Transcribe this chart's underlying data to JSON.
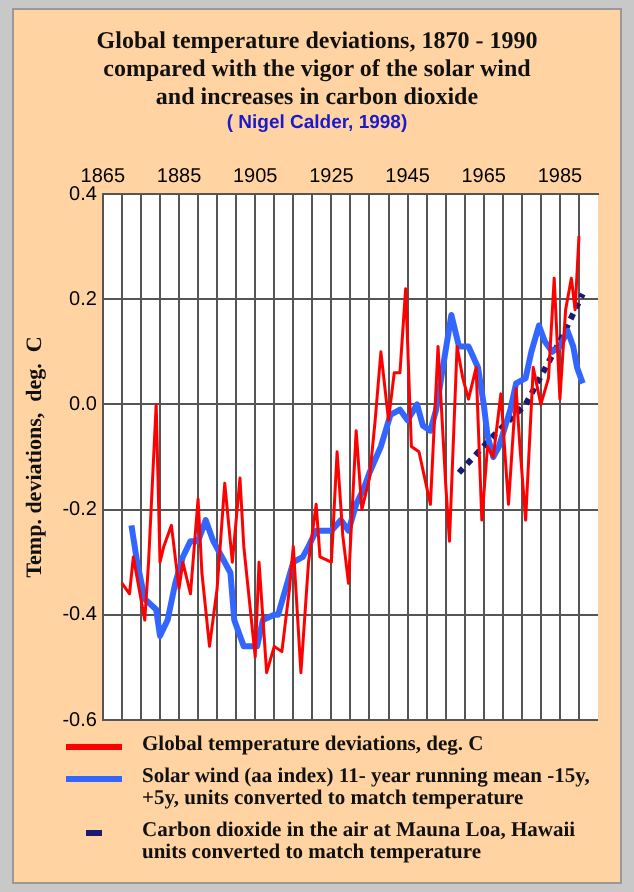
{
  "chart_data": {
    "type": "line",
    "title": "Global  temperature  deviations,  1870 - 1990\ncompared with the vigor of the solar wind\nand increases in carbon dioxide",
    "subtitle": "( Nigel Calder, 1998)",
    "ylabel": "Temp. deviations,  deg.  C",
    "xlim": [
      1865,
      1995
    ],
    "xticks": [
      1865,
      {
        "value": 1870,
        "label": null
      },
      {
        "value": 1875,
        "label": null
      },
      {
        "value": 1880,
        "label": null
      },
      1885,
      {
        "value": 1890,
        "label": null
      },
      {
        "value": 1895,
        "label": null
      },
      {
        "value": 1900,
        "label": null
      },
      1905,
      {
        "value": 1910,
        "label": null
      },
      {
        "value": 1915,
        "label": null
      },
      {
        "value": 1920,
        "label": null
      },
      1925,
      {
        "value": 1930,
        "label": null
      },
      {
        "value": 1935,
        "label": null
      },
      {
        "value": 1940,
        "label": null
      },
      1945,
      {
        "value": 1950,
        "label": null
      },
      {
        "value": 1955,
        "label": null
      },
      {
        "value": 1960,
        "label": null
      },
      1965,
      {
        "value": 1970,
        "label": null
      },
      {
        "value": 1975,
        "label": null
      },
      {
        "value": 1980,
        "label": null
      },
      1985,
      {
        "value": 1990,
        "label": null
      }
    ],
    "ylim": [
      -0.6,
      0.4
    ],
    "yticks": [
      {
        "value": -0.6,
        "label": "-0.6"
      },
      {
        "value": -0.4,
        "label": "-0.4"
      },
      {
        "value": -0.2,
        "label": "-0.2"
      },
      {
        "value": 0,
        "label": "0.0"
      },
      {
        "value": 0.2,
        "label": "0.2"
      },
      {
        "value": 0.4,
        "label": "0.4"
      }
    ],
    "grid": true,
    "legend": "bottom",
    "marker": "none",
    "series": [
      {
        "name": "Global temperature deviations, deg. C",
        "color": "#ff0000",
        "x": [
          1870,
          1872,
          1873,
          1874,
          1876,
          1877,
          1879,
          1880,
          1881,
          1883,
          1885,
          1886,
          1888,
          1890,
          1891,
          1893,
          1895,
          1897,
          1899,
          1901,
          1902,
          1905,
          1906,
          1908,
          1910,
          1912,
          1914,
          1915,
          1917,
          1919,
          1921,
          1922,
          1925,
          1926.5,
          1928,
          1929.5,
          1931.5,
          1933,
          1935,
          1936.5,
          1938,
          1940,
          1941.5,
          1943,
          1944.5,
          1946,
          1948,
          1951,
          1953,
          1955,
          1956,
          1958,
          1959.5,
          1961,
          1963,
          1964.5,
          1966,
          1967.5,
          1969.5,
          1971.5,
          1973.5,
          1974.5,
          1976,
          1978,
          1980,
          1982,
          1983.5,
          1985,
          1986.5,
          1988,
          1989,
          1990
        ],
        "values": [
          -0.34,
          -0.36,
          -0.29,
          -0.33,
          -0.41,
          -0.3,
          0.0,
          -0.3,
          -0.27,
          -0.23,
          -0.35,
          -0.3,
          -0.36,
          -0.18,
          -0.32,
          -0.46,
          -0.35,
          -0.15,
          -0.3,
          -0.14,
          -0.27,
          -0.48,
          -0.3,
          -0.51,
          -0.46,
          -0.47,
          -0.35,
          -0.27,
          -0.51,
          -0.3,
          -0.19,
          -0.29,
          -0.3,
          -0.09,
          -0.25,
          -0.34,
          -0.05,
          -0.2,
          -0.14,
          -0.03,
          0.1,
          -0.03,
          0.06,
          0.06,
          0.22,
          -0.08,
          -0.09,
          -0.19,
          0.11,
          -0.15,
          -0.26,
          0.11,
          0.05,
          0.01,
          0.07,
          -0.22,
          -0.08,
          -0.1,
          0.02,
          -0.19,
          0.03,
          -0.08,
          -0.22,
          0.07,
          0.0,
          0.05,
          0.24,
          0.01,
          0.18,
          0.24,
          0.18,
          0.32
        ]
      },
      {
        "name": "Solar wind (aa index) 11- year running mean -15y, +5y, units converted to match temperature",
        "color": "#3366ff",
        "x": [
          1872.5,
          1874,
          1876,
          1879,
          1880,
          1882,
          1884,
          1886,
          1888,
          1890,
          1892,
          1894,
          1897,
          1898.5,
          1899.5,
          1902,
          1905.5,
          1907,
          1910,
          1911,
          1913,
          1915,
          1917.5,
          1919,
          1921,
          1924,
          1925,
          1927.5,
          1929.5,
          1931.5,
          1933.5,
          1935,
          1938,
          1940.5,
          1943,
          1945,
          1947.5,
          1949,
          1951,
          1952.5,
          1954.5,
          1956.5,
          1958.5,
          1961,
          1963.5,
          1965,
          1966,
          1967.5,
          1969,
          1972,
          1973.5,
          1976,
          1977.5,
          1979.5,
          1981,
          1983,
          1985,
          1987,
          1988.5,
          1989.5,
          1991
        ],
        "values": [
          -0.23,
          -0.3,
          -0.37,
          -0.39,
          -0.44,
          -0.41,
          -0.34,
          -0.29,
          -0.26,
          -0.26,
          -0.22,
          -0.26,
          -0.3,
          -0.32,
          -0.41,
          -0.46,
          -0.46,
          -0.41,
          -0.4,
          -0.4,
          -0.35,
          -0.3,
          -0.29,
          -0.27,
          -0.24,
          -0.24,
          -0.24,
          -0.22,
          -0.24,
          -0.19,
          -0.16,
          -0.13,
          -0.08,
          -0.02,
          -0.01,
          -0.03,
          0.0,
          -0.04,
          -0.05,
          -0.01,
          0.08,
          0.17,
          0.11,
          0.11,
          0.07,
          0.0,
          -0.06,
          -0.1,
          -0.08,
          -0.01,
          0.04,
          0.05,
          0.1,
          0.15,
          0.12,
          0.1,
          0.11,
          0.14,
          0.11,
          0.07,
          0.04
        ]
      },
      {
        "name": "Carbon dioxide in the air at Mauna Loa, Hawaii units converted to match temperature",
        "color": "#1a1a6e",
        "line_style": "dashed",
        "x": [
          1958.5,
          1967.5,
          1976,
          1985,
          1991
        ],
        "values": [
          -0.13,
          -0.06,
          0.0,
          0.12,
          0.21
        ]
      }
    ]
  }
}
